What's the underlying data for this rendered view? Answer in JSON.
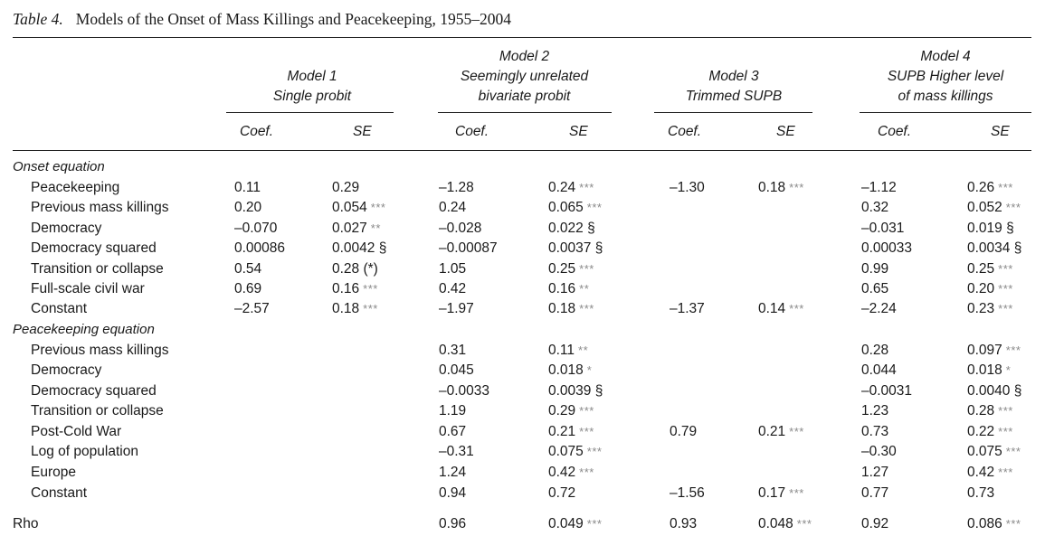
{
  "caption": {
    "label": "Table 4.",
    "title": "Models of the Onset of Mass Killings and Peacekeeping, 1955–2004"
  },
  "models": [
    {
      "lines": [
        "Model 1",
        "Single probit"
      ]
    },
    {
      "lines": [
        "Model 2",
        "Seemingly unrelated",
        "bivariate probit"
      ]
    },
    {
      "lines": [
        "Model 3",
        "Trimmed SUPB"
      ]
    },
    {
      "lines": [
        "Model 4",
        "SUPB Higher level",
        "of mass killings"
      ]
    }
  ],
  "columns": {
    "coef": "Coef.",
    "se": "SE"
  },
  "rows": [
    {
      "type": "section",
      "label": "Onset equation"
    },
    {
      "type": "var",
      "label": "Peacekeeping",
      "cells": [
        {
          "coef": "0.11",
          "se": "0.29",
          "stars": ""
        },
        {
          "coef": "–1.28",
          "se": "0.24",
          "stars": "***"
        },
        {
          "coef": "–1.30",
          "se": "0.18",
          "stars": "***"
        },
        {
          "coef": "–1.12",
          "se": "0.26",
          "stars": "***"
        }
      ]
    },
    {
      "type": "var",
      "label": "Previous mass killings",
      "cells": [
        {
          "coef": "0.20",
          "se": "0.054",
          "stars": "***"
        },
        {
          "coef": "0.24",
          "se": "0.065",
          "stars": "***"
        },
        null,
        {
          "coef": "0.32",
          "se": "0.052",
          "stars": "***"
        }
      ]
    },
    {
      "type": "var",
      "label": "Democracy",
      "cells": [
        {
          "coef": "–0.070",
          "se": "0.027",
          "stars": "**"
        },
        {
          "coef": "–0.028",
          "se": "0.022 §",
          "stars": ""
        },
        null,
        {
          "coef": "–0.031",
          "se": "0.019 §",
          "stars": ""
        }
      ]
    },
    {
      "type": "var",
      "label": "Democracy squared",
      "cells": [
        {
          "coef": "0.00086",
          "se": "0.0042 §",
          "stars": ""
        },
        {
          "coef": "–0.00087",
          "se": "0.0037 §",
          "stars": ""
        },
        null,
        {
          "coef": "0.00033",
          "se": "0.0034 §",
          "stars": ""
        }
      ]
    },
    {
      "type": "var",
      "label": "Transition or collapse",
      "cells": [
        {
          "coef": "0.54",
          "se": "0.28 (*)",
          "stars": ""
        },
        {
          "coef": "1.05",
          "se": "0.25",
          "stars": "***"
        },
        null,
        {
          "coef": "0.99",
          "se": "0.25",
          "stars": "***"
        }
      ]
    },
    {
      "type": "var",
      "label": "Full-scale civil war",
      "cells": [
        {
          "coef": "0.69",
          "se": "0.16",
          "stars": "***"
        },
        {
          "coef": "0.42",
          "se": "0.16",
          "stars": "**"
        },
        null,
        {
          "coef": "0.65",
          "se": "0.20",
          "stars": "***"
        }
      ]
    },
    {
      "type": "var",
      "label": "Constant",
      "cells": [
        {
          "coef": "–2.57",
          "se": "0.18",
          "stars": "***"
        },
        {
          "coef": "–1.97",
          "se": "0.18",
          "stars": "***"
        },
        {
          "coef": "–1.37",
          "se": "0.14",
          "stars": "***"
        },
        {
          "coef": "–2.24",
          "se": "0.23",
          "stars": "***"
        }
      ]
    },
    {
      "type": "section",
      "label": "Peacekeeping equation"
    },
    {
      "type": "var",
      "label": "Previous mass killings",
      "cells": [
        null,
        {
          "coef": "0.31",
          "se": "0.11",
          "stars": "**"
        },
        null,
        {
          "coef": "0.28",
          "se": "0.097",
          "stars": "***"
        }
      ]
    },
    {
      "type": "var",
      "label": "Democracy",
      "cells": [
        null,
        {
          "coef": "0.045",
          "se": "0.018",
          "stars": "*"
        },
        null,
        {
          "coef": "0.044",
          "se": "0.018",
          "stars": "*"
        }
      ]
    },
    {
      "type": "var",
      "label": "Democracy squared",
      "cells": [
        null,
        {
          "coef": "–0.0033",
          "se": "0.0039 §",
          "stars": ""
        },
        null,
        {
          "coef": "–0.0031",
          "se": "0.0040 §",
          "stars": ""
        }
      ]
    },
    {
      "type": "var",
      "label": "Transition or collapse",
      "cells": [
        null,
        {
          "coef": "1.19",
          "se": "0.29",
          "stars": "***"
        },
        null,
        {
          "coef": "1.23",
          "se": "0.28",
          "stars": "***"
        }
      ]
    },
    {
      "type": "var",
      "label": "Post-Cold War",
      "cells": [
        null,
        {
          "coef": "0.67",
          "se": "0.21",
          "stars": "***"
        },
        {
          "coef": "0.79",
          "se": "0.21",
          "stars": "***"
        },
        {
          "coef": "0.73",
          "se": "0.22",
          "stars": "***"
        }
      ]
    },
    {
      "type": "var",
      "label": "Log of population",
      "cells": [
        null,
        {
          "coef": "–0.31",
          "se": "0.075",
          "stars": "***"
        },
        null,
        {
          "coef": "–0.30",
          "se": "0.075",
          "stars": "***"
        }
      ]
    },
    {
      "type": "var",
      "label": "Europe",
      "cells": [
        null,
        {
          "coef": "1.24",
          "se": "0.42",
          "stars": "***"
        },
        null,
        {
          "coef": "1.27",
          "se": "0.42",
          "stars": "***"
        }
      ]
    },
    {
      "type": "var",
      "label": "Constant",
      "cells": [
        null,
        {
          "coef": "0.94",
          "se": "0.72",
          "stars": ""
        },
        {
          "coef": "–1.56",
          "se": "0.17",
          "stars": "***"
        },
        {
          "coef": "0.77",
          "se": "0.73",
          "stars": ""
        }
      ]
    },
    {
      "type": "rho",
      "label": "Rho",
      "cells": [
        null,
        {
          "coef": "0.96",
          "se": "0.049",
          "stars": "***"
        },
        {
          "coef": "0.93",
          "se": "0.048",
          "stars": "***"
        },
        {
          "coef": "0.92",
          "se": "0.086",
          "stars": "***"
        }
      ]
    }
  ]
}
